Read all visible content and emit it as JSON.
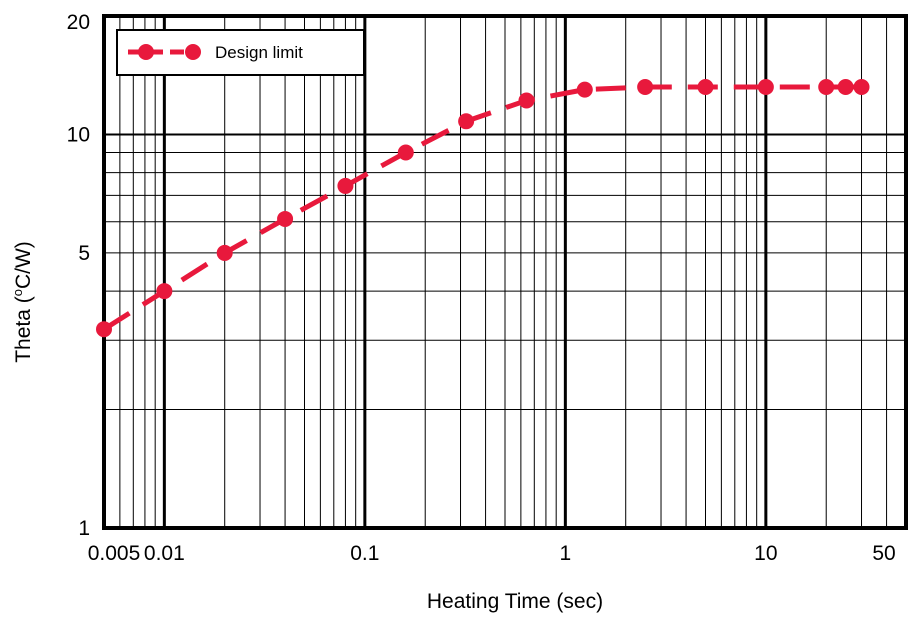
{
  "chart_data": {
    "type": "line",
    "x_scale": "log",
    "y_scale": "log",
    "xlabel": "Heating Time (sec)",
    "ylabel": "Theta (",
    "ylabel_sup": "o",
    "ylabel_tail": "C/W)",
    "xlim": [
      0.005,
      50
    ],
    "ylim": [
      1,
      20
    ],
    "x_ticks": [
      0.005,
      0.01,
      0.1,
      1,
      10,
      50
    ],
    "x_tick_labels": [
      "0.005",
      "0.01",
      "0.1",
      "1",
      "10",
      "50"
    ],
    "y_ticks": [
      1,
      5,
      10,
      20
    ],
    "y_tick_labels": [
      "1",
      "5",
      "10",
      "20"
    ],
    "grid": true,
    "legend_position": "top-left",
    "series": [
      {
        "name": "Design limit",
        "color": "#e8193c",
        "line_style": "dashed",
        "marker": "circle",
        "x": [
          0.005,
          0.01,
          0.02,
          0.04,
          0.08,
          0.16,
          0.32,
          0.64,
          1.25,
          2.5,
          5,
          10,
          20,
          25,
          30
        ],
        "y": [
          3.2,
          4.0,
          5.0,
          6.1,
          7.4,
          9.0,
          10.8,
          12.2,
          13.0,
          13.2,
          13.2,
          13.2,
          13.2,
          13.2,
          13.2
        ]
      }
    ]
  }
}
